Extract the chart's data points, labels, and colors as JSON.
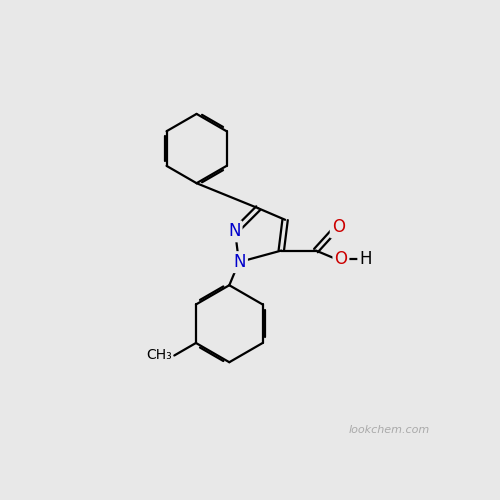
{
  "background_color": "#e8e8e8",
  "bond_color": "#000000",
  "bond_width": 1.6,
  "atom_colors": {
    "N": "#0000cc",
    "O": "#cc0000",
    "C": "#000000",
    "H": "#000000"
  },
  "font_size_atom": 12,
  "watermark": "lookchem.com",
  "watermark_color": "#aaaaaa",
  "watermark_fontsize": 8
}
